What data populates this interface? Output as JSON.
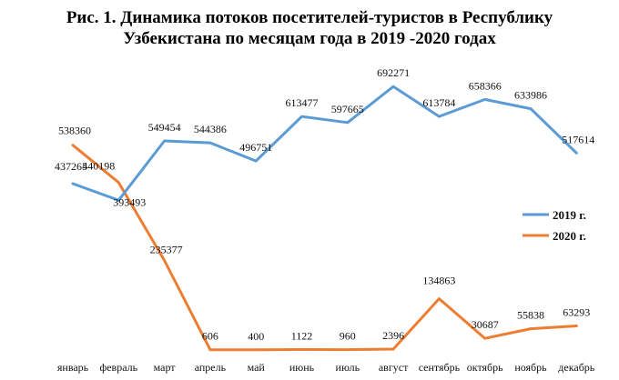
{
  "title_line1": "Рис. 1. Динамика потоков посетителей-туристов в Республику",
  "title_line2": "Узбекистана по месяцам года в 2019 -2020 годах",
  "colors": {
    "series_2019": "#5b9bd5",
    "series_2020": "#ed7d31"
  },
  "chart_data": {
    "type": "line",
    "title": "Рис. 1. Динамика потоков посетителей-туристов в Республику Узбекистана по месяцам года в 2019 -2020 годах",
    "xlabel": "",
    "ylabel": "",
    "grid": false,
    "legend_position": "right",
    "categories": [
      "январь",
      "февраль",
      "март",
      "апрель",
      "май",
      "июнь",
      "июль",
      "август",
      "сентябрь",
      "октябрь",
      "ноябрь",
      "декабрь"
    ],
    "ylim": [
      0,
      700000
    ],
    "series": [
      {
        "name": "2019 г.",
        "color": "#5b9bd5",
        "values": [
          437265,
          393493,
          549454,
          544386,
          496751,
          613477,
          597665,
          692271,
          613784,
          658366,
          633986,
          517614
        ]
      },
      {
        "name": "2020 г.",
        "color": "#ed7d31",
        "values": [
          538360,
          440198,
          235377,
          606,
          400,
          1122,
          960,
          2396,
          134863,
          30687,
          55838,
          63293
        ]
      }
    ]
  }
}
